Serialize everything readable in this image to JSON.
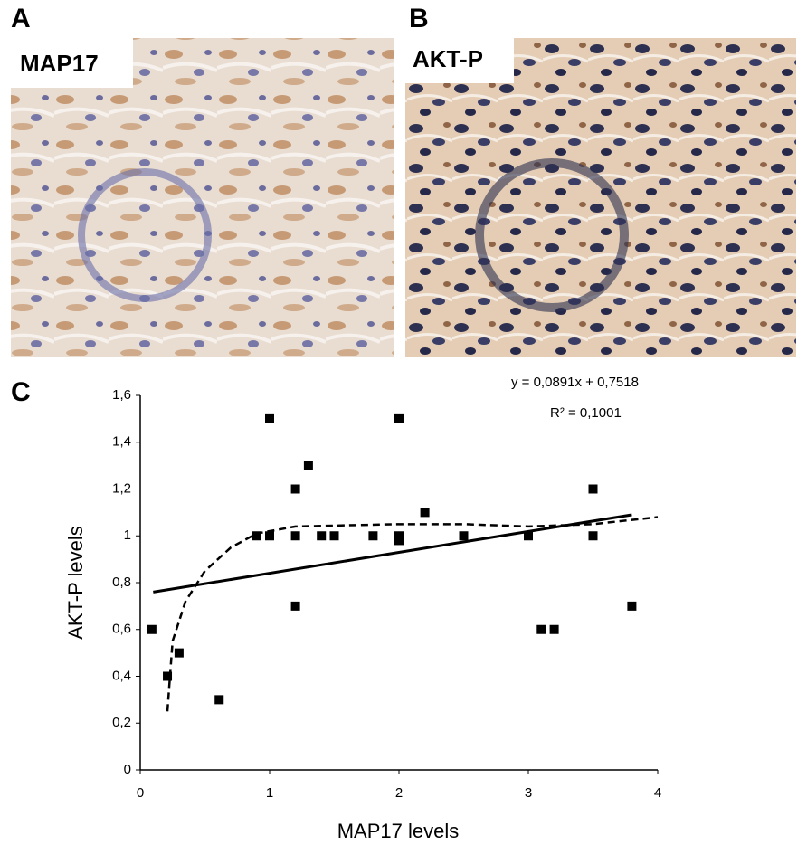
{
  "panels": [
    {
      "letter": "A",
      "label": "MAP17"
    },
    {
      "letter": "B",
      "label": "AKT-P"
    }
  ],
  "chart_data": {
    "type": "scatter",
    "panel": "C",
    "x_label": "MAP17 levels",
    "y_label": "AKT-P levels",
    "annotations": [
      "y = 0,0891x + 0,7518",
      "R² = 0,1001"
    ],
    "xlim": [
      0,
      4
    ],
    "xticks": [
      0,
      1,
      2,
      3,
      4
    ],
    "ylim": [
      0,
      1.6
    ],
    "yticks": [
      0,
      {
        "value": 0.2,
        "label": "0,2"
      },
      {
        "value": 0.4,
        "label": "0,4"
      },
      {
        "value": 0.6,
        "label": "0,6"
      },
      {
        "value": 0.8,
        "label": "0,8"
      },
      1,
      {
        "value": 1.2,
        "label": "1,2"
      },
      {
        "value": 1.4,
        "label": "1,4"
      },
      {
        "value": 1.6,
        "label": "1,6"
      }
    ],
    "color": "#000000",
    "x": [
      0.09,
      0.21,
      0.3,
      0.61,
      0.9,
      1.0,
      1.0,
      1.2,
      1.2,
      1.2,
      1.3,
      1.4,
      1.5,
      1.8,
      2.0,
      2.0,
      2.0,
      2.2,
      2.5,
      3.0,
      3.1,
      3.2,
      3.5,
      3.5,
      3.8
    ],
    "values": [
      0.6,
      0.4,
      0.5,
      0.3,
      1.0,
      1.5,
      1.0,
      1.2,
      1.0,
      0.7,
      1.3,
      1.0,
      1.0,
      1.0,
      1.5,
      1.0,
      0.98,
      1.1,
      1.0,
      1.0,
      0.6,
      0.6,
      1.2,
      1.0,
      0.7
    ],
    "lines": [
      {
        "style": "solid",
        "x": [
          0.1,
          3.8
        ],
        "values": [
          0.76,
          1.09
        ]
      },
      {
        "style": "dashed",
        "x": [
          0.21,
          0.25,
          0.35,
          0.5,
          0.7,
          0.9,
          1.2,
          2.0,
          2.5,
          3.0,
          3.5,
          4.0
        ],
        "values": [
          0.25,
          0.55,
          0.72,
          0.85,
          0.95,
          1.01,
          1.04,
          1.05,
          1.05,
          1.04,
          1.05,
          1.08
        ]
      }
    ]
  }
}
